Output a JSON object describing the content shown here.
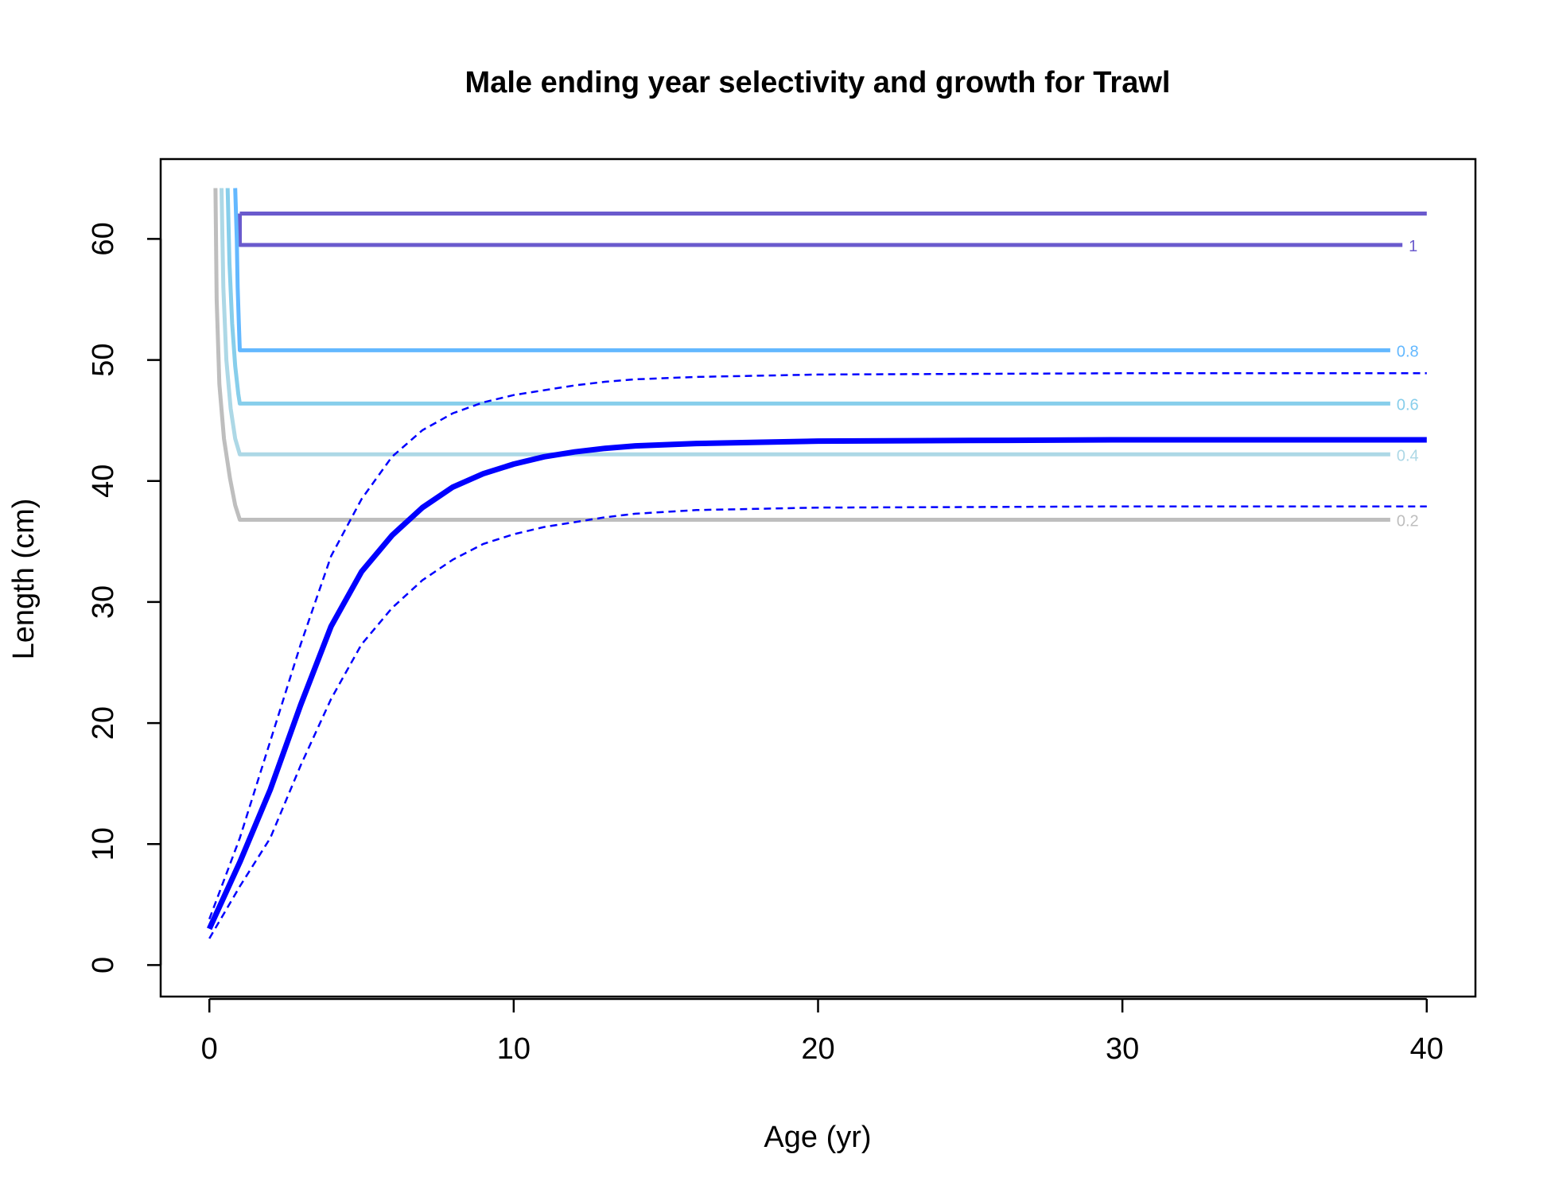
{
  "chart_data": {
    "type": "line",
    "title": "Male ending year selectivity and growth for Trawl",
    "xlabel": "Age (yr)",
    "ylabel": "Length (cm)",
    "xlim": [
      -1.6,
      41.6
    ],
    "ylim": [
      -2.6,
      66.6
    ],
    "x_ticks": [
      0,
      10,
      20,
      30,
      40
    ],
    "y_ticks": [
      0,
      10,
      20,
      30,
      40,
      50,
      60
    ],
    "grid": false,
    "legend": "none",
    "colors": {
      "growth": "#0000ff",
      "contour_1": "#6a5acd",
      "contour_0.8": "#63b8ff",
      "contour_0.6": "#87ceeb",
      "contour_0.4": "#add8e6",
      "contour_0.2": "#bebebe"
    },
    "growth_mean": {
      "x": [
        0,
        1,
        2,
        3,
        4,
        5,
        6,
        7,
        8,
        9,
        10,
        11,
        12,
        13,
        14,
        16,
        18,
        20,
        25,
        30,
        35,
        40
      ],
      "y": [
        3,
        8.5,
        14.5,
        21.5,
        28,
        32.5,
        35.5,
        37.8,
        39.5,
        40.6,
        41.4,
        42,
        42.4,
        42.7,
        42.9,
        43.1,
        43.2,
        43.3,
        43.35,
        43.4,
        43.4,
        43.4
      ]
    },
    "growth_upper": {
      "x": [
        0,
        1,
        2,
        3,
        4,
        5,
        6,
        7,
        8,
        9,
        10,
        11,
        12,
        13,
        14,
        16,
        18,
        20,
        25,
        30,
        35,
        40
      ],
      "y": [
        3.8,
        10.5,
        18.5,
        26.5,
        33.8,
        38.5,
        42,
        44.2,
        45.6,
        46.5,
        47.1,
        47.5,
        47.9,
        48.2,
        48.4,
        48.6,
        48.7,
        48.8,
        48.85,
        48.9,
        48.9,
        48.9
      ]
    },
    "growth_lower": {
      "x": [
        0,
        1,
        2,
        3,
        4,
        5,
        6,
        7,
        8,
        9,
        10,
        11,
        12,
        13,
        14,
        16,
        18,
        20,
        25,
        30,
        35,
        40
      ],
      "y": [
        2.2,
        6.5,
        10.5,
        16.5,
        22,
        26.5,
        29.5,
        31.8,
        33.5,
        34.8,
        35.6,
        36.2,
        36.6,
        37,
        37.3,
        37.6,
        37.7,
        37.8,
        37.85,
        37.9,
        37.9,
        37.9
      ]
    },
    "selectivity_contours": [
      {
        "label": "1",
        "color": "#6a5acd",
        "x": [
          1,
          1,
          39.2
        ],
        "y": [
          62.1,
          59.5,
          59.5
        ],
        "x2": [
          1,
          40
        ],
        "y2": [
          62.1,
          62.1
        ]
      },
      {
        "label": "0.8",
        "color": "#63b8ff",
        "x": [
          0.85,
          0.9,
          0.93,
          0.97,
          1,
          38.8
        ],
        "y": [
          64.2,
          60,
          56,
          53,
          50.8,
          50.8
        ]
      },
      {
        "label": "0.6",
        "color": "#87ceeb",
        "x": [
          0.6,
          0.66,
          0.75,
          0.85,
          0.95,
          1,
          38.8
        ],
        "y": [
          64.2,
          58,
          53,
          49.5,
          47.2,
          46.4,
          46.4
        ]
      },
      {
        "label": "0.4",
        "color": "#add8e6",
        "x": [
          0.4,
          0.46,
          0.56,
          0.7,
          0.85,
          1,
          38.8
        ],
        "y": [
          64.2,
          56,
          50,
          46,
          43.5,
          42.2,
          42.2
        ]
      },
      {
        "label": "0.2",
        "color": "#bebebe",
        "x": [
          0.2,
          0.24,
          0.33,
          0.48,
          0.68,
          0.85,
          1,
          38.8
        ],
        "y": [
          64.2,
          55,
          48,
          43.5,
          40.2,
          38,
          36.8,
          36.8
        ]
      }
    ]
  }
}
